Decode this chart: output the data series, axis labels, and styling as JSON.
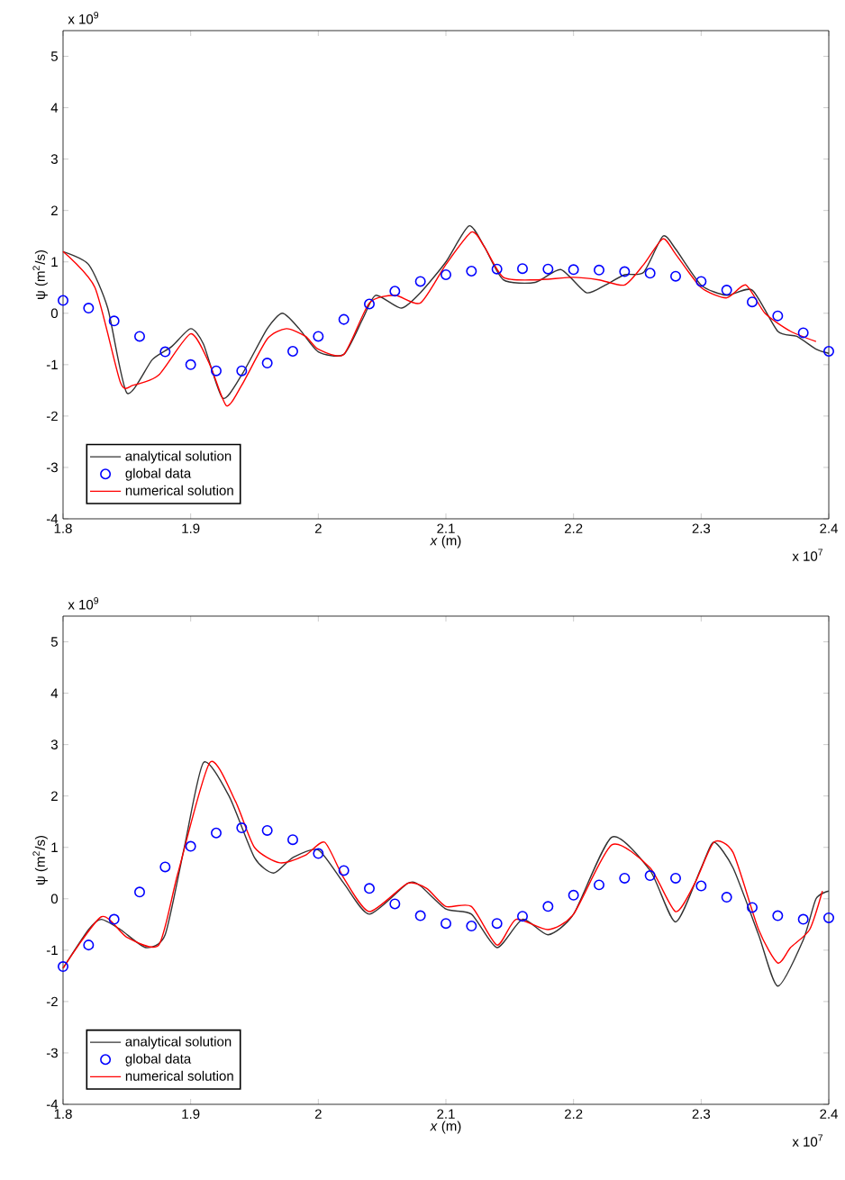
{
  "chart_data": [
    {
      "type": "line",
      "xlabel": "*x* (m)",
      "ylabel": "ψ (m$^{2}$/s)",
      "xlim": [
        1.8,
        2.4
      ],
      "ylim": [
        -4,
        5.5
      ],
      "xticks": [
        1.8,
        1.9,
        2,
        2.1,
        2.2,
        2.3,
        2.4
      ],
      "yticks": [
        -4,
        -3,
        -2,
        -1,
        0,
        1,
        2,
        3,
        4,
        5
      ],
      "grid": false,
      "legend": "bottom left",
      "annotations": [
        "x 10$^{9}$",
        "x 10$^{7}$"
      ],
      "series": [
        {
          "name": "analytical solution",
          "color": "#333333",
          "marker": "none",
          "x": [
            1.8,
            1.82,
            1.835,
            1.85,
            1.87,
            1.885,
            1.9,
            1.91,
            1.925,
            1.94,
            1.96,
            1.972,
            1.985,
            2.0,
            2.02,
            2.035,
            2.045,
            2.065,
            2.08,
            2.1,
            2.118,
            2.13,
            2.145,
            2.17,
            2.19,
            2.21,
            2.225,
            2.24,
            2.255,
            2.27,
            2.28,
            2.3,
            2.32,
            2.34,
            2.36,
            2.375,
            2.39,
            2.4
          ],
          "values": [
            1.2,
            0.95,
            0.1,
            -1.55,
            -0.9,
            -0.65,
            -0.3,
            -0.6,
            -1.65,
            -1.2,
            -0.3,
            0.0,
            -0.3,
            -0.75,
            -0.8,
            -0.1,
            0.35,
            0.1,
            0.4,
            1.0,
            1.7,
            1.3,
            0.65,
            0.6,
            0.85,
            0.4,
            0.55,
            0.75,
            0.8,
            1.5,
            1.25,
            0.55,
            0.35,
            0.45,
            -0.35,
            -0.45,
            -0.7,
            -0.78
          ]
        },
        {
          "name": "global data",
          "type": "scatter",
          "color": "#0000ff",
          "marker": "circle",
          "x": [
            1.8,
            1.82,
            1.84,
            1.86,
            1.88,
            1.9,
            1.92,
            1.94,
            1.96,
            1.98,
            2.0,
            2.02,
            2.04,
            2.06,
            2.08,
            2.1,
            2.12,
            2.14,
            2.16,
            2.18,
            2.2,
            2.22,
            2.24,
            2.26,
            2.28,
            2.3,
            2.32,
            2.34,
            2.36,
            2.38,
            2.4
          ],
          "values": [
            0.25,
            0.1,
            -0.15,
            -0.45,
            -0.75,
            -1.0,
            -1.12,
            -1.12,
            -0.97,
            -0.74,
            -0.45,
            -0.12,
            0.18,
            0.43,
            0.62,
            0.75,
            0.82,
            0.86,
            0.87,
            0.86,
            0.85,
            0.84,
            0.81,
            0.78,
            0.72,
            0.62,
            0.45,
            0.22,
            -0.05,
            -0.38,
            -0.74
          ]
        },
        {
          "name": "numerical solution",
          "color": "#ff0000",
          "marker": "none",
          "x": [
            1.8,
            1.825,
            1.845,
            1.855,
            1.875,
            1.9,
            1.915,
            1.928,
            1.94,
            1.96,
            1.975,
            1.99,
            2.0,
            2.02,
            2.04,
            2.06,
            2.08,
            2.1,
            2.12,
            2.13,
            2.145,
            2.17,
            2.2,
            2.22,
            2.24,
            2.255,
            2.27,
            2.28,
            2.3,
            2.32,
            2.335,
            2.35,
            2.37,
            2.39
          ],
          "values": [
            1.2,
            0.5,
            -1.35,
            -1.4,
            -1.2,
            -0.4,
            -1.0,
            -1.8,
            -1.4,
            -0.5,
            -0.3,
            -0.45,
            -0.7,
            -0.8,
            0.2,
            0.35,
            0.2,
            0.95,
            1.58,
            1.3,
            0.7,
            0.65,
            0.7,
            0.65,
            0.55,
            0.95,
            1.45,
            1.15,
            0.5,
            0.3,
            0.55,
            0.0,
            -0.35,
            -0.55
          ]
        }
      ]
    },
    {
      "type": "line",
      "xlabel": "*x* (m)",
      "ylabel": "ψ (m$^{2}$/s)",
      "xlim": [
        1.8,
        2.4
      ],
      "ylim": [
        -4,
        5.5
      ],
      "xticks": [
        1.8,
        1.9,
        2,
        2.1,
        2.2,
        2.3,
        2.4
      ],
      "yticks": [
        -4,
        -3,
        -2,
        -1,
        0,
        1,
        2,
        3,
        4,
        5
      ],
      "grid": false,
      "legend": "bottom left",
      "annotations": [
        "x 10$^{9}$",
        "x 10$^{7}$"
      ],
      "series": [
        {
          "name": "analytical solution",
          "color": "#333333",
          "marker": "none",
          "x": [
            1.8,
            1.82,
            1.83,
            1.845,
            1.865,
            1.88,
            1.895,
            1.91,
            1.93,
            1.95,
            1.965,
            1.98,
            2.0,
            2.02,
            2.04,
            2.07,
            2.08,
            2.1,
            2.12,
            2.14,
            2.16,
            2.18,
            2.2,
            2.23,
            2.26,
            2.28,
            2.3,
            2.31,
            2.325,
            2.345,
            2.36,
            2.38,
            2.39,
            2.4
          ],
          "values": [
            -1.35,
            -0.6,
            -0.4,
            -0.6,
            -0.95,
            -0.7,
            1.0,
            2.65,
            2.0,
            0.8,
            0.5,
            0.8,
            0.95,
            0.3,
            -0.3,
            0.3,
            0.25,
            -0.2,
            -0.3,
            -0.95,
            -0.4,
            -0.7,
            -0.3,
            1.2,
            0.55,
            -0.45,
            0.6,
            1.1,
            0.6,
            -0.7,
            -1.7,
            -0.8,
            0.0,
            0.15
          ]
        },
        {
          "name": "global data",
          "type": "scatter",
          "color": "#0000ff",
          "marker": "circle",
          "x": [
            1.8,
            1.82,
            1.84,
            1.86,
            1.88,
            1.9,
            1.92,
            1.94,
            1.96,
            1.98,
            2.0,
            2.02,
            2.04,
            2.06,
            2.08,
            2.1,
            2.12,
            2.14,
            2.16,
            2.18,
            2.2,
            2.22,
            2.24,
            2.26,
            2.28,
            2.3,
            2.32,
            2.34,
            2.36,
            2.38,
            2.4
          ],
          "values": [
            -1.32,
            -0.9,
            -0.4,
            0.13,
            0.62,
            1.02,
            1.28,
            1.38,
            1.33,
            1.15,
            0.88,
            0.55,
            0.2,
            -0.1,
            -0.33,
            -0.48,
            -0.53,
            -0.48,
            -0.34,
            -0.15,
            0.07,
            0.27,
            0.4,
            0.45,
            0.4,
            0.25,
            0.03,
            -0.17,
            -0.33,
            -0.4,
            -0.37
          ]
        },
        {
          "name": "numerical solution",
          "color": "#ff0000",
          "marker": "none",
          "x": [
            1.8,
            1.83,
            1.85,
            1.875,
            1.89,
            1.915,
            1.935,
            1.95,
            1.97,
            1.99,
            2.005,
            2.02,
            2.04,
            2.07,
            2.085,
            2.1,
            2.12,
            2.14,
            2.155,
            2.18,
            2.2,
            2.23,
            2.26,
            2.28,
            2.295,
            2.31,
            2.325,
            2.345,
            2.36,
            2.37,
            2.385,
            2.395
          ],
          "values": [
            -1.35,
            -0.35,
            -0.75,
            -0.9,
            0.5,
            2.65,
            1.9,
            1.0,
            0.7,
            0.85,
            1.1,
            0.4,
            -0.25,
            0.3,
            0.2,
            -0.15,
            -0.15,
            -0.9,
            -0.4,
            -0.6,
            -0.3,
            1.05,
            0.6,
            -0.25,
            0.3,
            1.1,
            0.9,
            -0.6,
            -1.25,
            -0.95,
            -0.6,
            0.15
          ]
        }
      ]
    }
  ]
}
